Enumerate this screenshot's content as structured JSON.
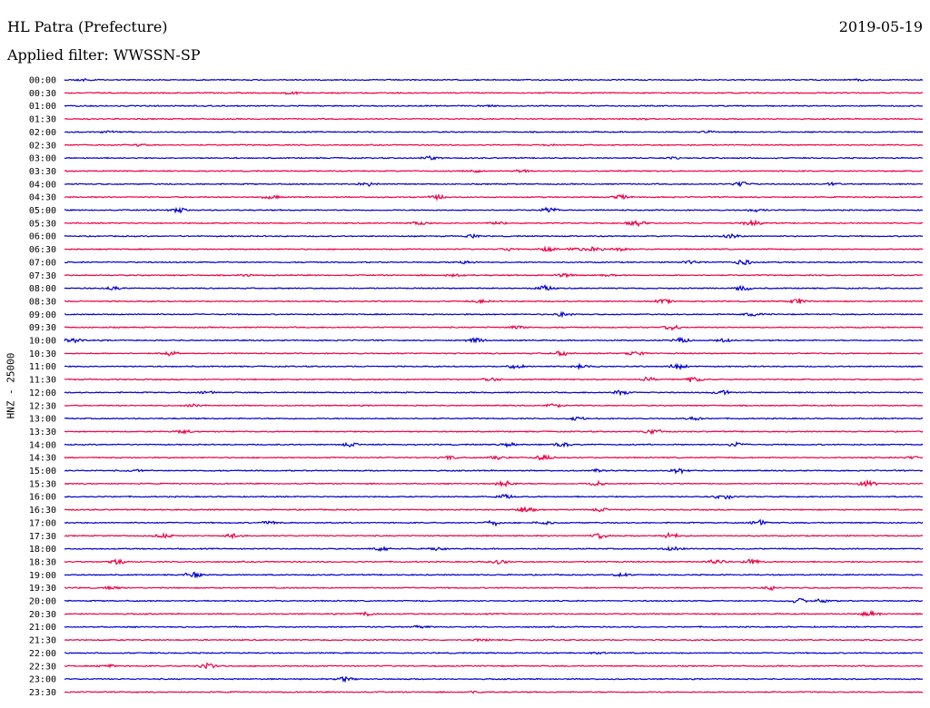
{
  "header": {
    "station": "HL Patra (Prefecture)",
    "date": "2019-05-19",
    "filter": "Applied filter: WWSSN-SP"
  },
  "axis": {
    "y_label": "HNZ - 25000"
  },
  "colors": {
    "trace_a": "#0000cc",
    "trace_b": "#ee0044",
    "background": "#ffffff",
    "text": "#000000"
  },
  "chart_data": {
    "type": "line",
    "title": "HL Patra (Prefecture)",
    "subtitle": "Applied filter: WWSSN-SP",
    "ylabel": "HNZ - 25000",
    "xlabel": "",
    "grid": false,
    "legend": "none",
    "rows": [
      {
        "label": "00:00",
        "color": "#0000cc",
        "bursts": [
          [
            92,
            1.2
          ],
          [
            947,
            1.1
          ]
        ]
      },
      {
        "label": "00:30",
        "color": "#ee0044",
        "bursts": [
          [
            322,
            1.8
          ]
        ]
      },
      {
        "label": "01:00",
        "color": "#0000cc",
        "bursts": [
          [
            540,
            0.8
          ]
        ]
      },
      {
        "label": "01:30",
        "color": "#ee0044",
        "bursts": [
          [
            710,
            0.6
          ]
        ]
      },
      {
        "label": "02:00",
        "color": "#0000cc",
        "bursts": [
          [
            120,
            0.9
          ],
          [
            780,
            0.8
          ]
        ]
      },
      {
        "label": "02:30",
        "color": "#ee0044",
        "bursts": [
          [
            150,
            1.5
          ],
          [
            600,
            0.8
          ]
        ]
      },
      {
        "label": "03:00",
        "color": "#0000cc",
        "bursts": [
          [
            474,
            2.0
          ],
          [
            740,
            0.8
          ]
        ]
      },
      {
        "label": "03:30",
        "color": "#ee0044",
        "bursts": [
          [
            520,
            2.0
          ],
          [
            575,
            1.6
          ]
        ]
      },
      {
        "label": "04:00",
        "color": "#0000cc",
        "bursts": [
          [
            405,
            2.5
          ],
          [
            817,
            3.0
          ],
          [
            917,
            1.5
          ]
        ]
      },
      {
        "label": "04:30",
        "color": "#ee0044",
        "bursts": [
          [
            298,
            2.2
          ],
          [
            482,
            2.5
          ],
          [
            684,
            2.2
          ]
        ]
      },
      {
        "label": "05:00",
        "color": "#0000cc",
        "bursts": [
          [
            196,
            3.0
          ],
          [
            605,
            3.2
          ],
          [
            833,
            1.8
          ]
        ]
      },
      {
        "label": "05:30",
        "color": "#ee0044",
        "bursts": [
          [
            461,
            2.0
          ],
          [
            548,
            2.0
          ],
          [
            701,
            3.0
          ],
          [
            828,
            3.2
          ]
        ]
      },
      {
        "label": "06:00",
        "color": "#0000cc",
        "bursts": [
          [
            520,
            2.0
          ],
          [
            805,
            2.5
          ]
        ]
      },
      {
        "label": "06:30",
        "color": "#ee0044",
        "bursts": [
          [
            560,
            1.5
          ],
          [
            603,
            2.5
          ],
          [
            635,
            2.2
          ],
          [
            656,
            2.8
          ],
          [
            683,
            2.2
          ]
        ]
      },
      {
        "label": "07:00",
        "color": "#0000cc",
        "bursts": [
          [
            513,
            2.0
          ],
          [
            758,
            2.0
          ],
          [
            818,
            3.5
          ]
        ]
      },
      {
        "label": "07:30",
        "color": "#ee0044",
        "bursts": [
          [
            270,
            1.2
          ],
          [
            500,
            1.8
          ],
          [
            620,
            2.2
          ],
          [
            670,
            1.5
          ]
        ]
      },
      {
        "label": "08:00",
        "color": "#0000cc",
        "bursts": [
          [
            125,
            1.8
          ],
          [
            600,
            3.0
          ],
          [
            818,
            2.8
          ]
        ]
      },
      {
        "label": "08:30",
        "color": "#ee0044",
        "bursts": [
          [
            530,
            1.8
          ],
          [
            730,
            2.5
          ],
          [
            878,
            3.2
          ]
        ]
      },
      {
        "label": "09:00",
        "color": "#0000cc",
        "bursts": [
          [
            620,
            2.5
          ],
          [
            830,
            2.5
          ]
        ]
      },
      {
        "label": "09:30",
        "color": "#ee0044",
        "bursts": [
          [
            570,
            2.0
          ],
          [
            740,
            3.0
          ]
        ]
      },
      {
        "label": "10:00",
        "color": "#0000cc",
        "bursts": [
          [
            82,
            3.5
          ],
          [
            523,
            2.5
          ],
          [
            749,
            2.8
          ],
          [
            797,
            2.2
          ]
        ]
      },
      {
        "label": "10:30",
        "color": "#ee0044",
        "bursts": [
          [
            186,
            3.2
          ],
          [
            617,
            3.0
          ],
          [
            700,
            2.2
          ]
        ]
      },
      {
        "label": "11:00",
        "color": "#0000cc",
        "bursts": [
          [
            567,
            2.5
          ],
          [
            638,
            2.2
          ],
          [
            747,
            3.5
          ]
        ]
      },
      {
        "label": "11:30",
        "color": "#ee0044",
        "bursts": [
          [
            540,
            3.0
          ],
          [
            714,
            2.5
          ],
          [
            764,
            3.0
          ]
        ]
      },
      {
        "label": "12:00",
        "color": "#0000cc",
        "bursts": [
          [
            228,
            1.5
          ],
          [
            686,
            3.2
          ],
          [
            794,
            3.0
          ]
        ]
      },
      {
        "label": "12:30",
        "color": "#ee0044",
        "bursts": [
          [
            212,
            1.5
          ],
          [
            610,
            2.5
          ]
        ]
      },
      {
        "label": "13:00",
        "color": "#0000cc",
        "bursts": [
          [
            635,
            2.0
          ],
          [
            766,
            2.2
          ]
        ]
      },
      {
        "label": "13:30",
        "color": "#ee0044",
        "bursts": [
          [
            203,
            2.2
          ],
          [
            720,
            3.5
          ]
        ]
      },
      {
        "label": "14:00",
        "color": "#0000cc",
        "bursts": [
          [
            384,
            2.5
          ],
          [
            560,
            2.5
          ],
          [
            620,
            2.5
          ],
          [
            812,
            3.0
          ]
        ]
      },
      {
        "label": "14:30",
        "color": "#ee0044",
        "bursts": [
          [
            494,
            2.0
          ],
          [
            549,
            2.5
          ],
          [
            600,
            3.5
          ],
          [
            1005,
            1.5
          ]
        ]
      },
      {
        "label": "15:00",
        "color": "#0000cc",
        "bursts": [
          [
            148,
            1.5
          ],
          [
            660,
            1.5
          ],
          [
            748,
            3.0
          ]
        ]
      },
      {
        "label": "15:30",
        "color": "#ee0044",
        "bursts": [
          [
            556,
            3.2
          ],
          [
            658,
            2.8
          ],
          [
            955,
            3.5
          ]
        ]
      },
      {
        "label": "16:00",
        "color": "#0000cc",
        "bursts": [
          [
            556,
            2.5
          ],
          [
            796,
            3.5
          ]
        ]
      },
      {
        "label": "16:30",
        "color": "#ee0044",
        "bursts": [
          [
            579,
            3.5
          ],
          [
            660,
            2.0
          ]
        ]
      },
      {
        "label": "17:00",
        "color": "#0000cc",
        "bursts": [
          [
            297,
            2.0
          ],
          [
            543,
            3.0
          ],
          [
            598,
            2.2
          ],
          [
            836,
            3.0
          ]
        ]
      },
      {
        "label": "17:30",
        "color": "#ee0044",
        "bursts": [
          [
            180,
            2.5
          ],
          [
            258,
            3.0
          ],
          [
            660,
            3.2
          ],
          [
            738,
            3.5
          ]
        ]
      },
      {
        "label": "18:00",
        "color": "#0000cc",
        "bursts": [
          [
            420,
            3.0
          ],
          [
            482,
            2.2
          ],
          [
            740,
            2.5
          ]
        ]
      },
      {
        "label": "18:30",
        "color": "#ee0044",
        "bursts": [
          [
            130,
            2.8
          ],
          [
            550,
            2.5
          ],
          [
            788,
            3.0
          ],
          [
            826,
            3.2
          ]
        ]
      },
      {
        "label": "19:00",
        "color": "#0000cc",
        "bursts": [
          [
            213,
            3.2
          ],
          [
            685,
            2.0
          ]
        ]
      },
      {
        "label": "19:30",
        "color": "#ee0044",
        "bursts": [
          [
            125,
            1.8
          ],
          [
            850,
            2.0
          ]
        ]
      },
      {
        "label": "20:00",
        "color": "#0000cc",
        "bursts": [
          [
            880,
            3.0
          ],
          [
            905,
            2.0
          ]
        ]
      },
      {
        "label": "20:30",
        "color": "#ee0044",
        "bursts": [
          [
            404,
            2.0
          ],
          [
            958,
            3.2
          ]
        ]
      },
      {
        "label": "21:00",
        "color": "#0000cc",
        "bursts": [
          [
            463,
            2.0
          ]
        ]
      },
      {
        "label": "21:30",
        "color": "#ee0044",
        "bursts": [
          [
            530,
            1.2
          ]
        ]
      },
      {
        "label": "22:00",
        "color": "#0000cc",
        "bursts": [
          [
            660,
            1.0
          ]
        ]
      },
      {
        "label": "22:30",
        "color": "#ee0044",
        "bursts": [
          [
            229,
            3.5
          ],
          [
            120,
            1.5
          ]
        ]
      },
      {
        "label": "23:00",
        "color": "#0000cc",
        "bursts": [
          [
            380,
            3.2
          ]
        ]
      },
      {
        "label": "23:30",
        "color": "#ee0044",
        "bursts": [
          [
            520,
            0.8
          ]
        ]
      }
    ]
  }
}
